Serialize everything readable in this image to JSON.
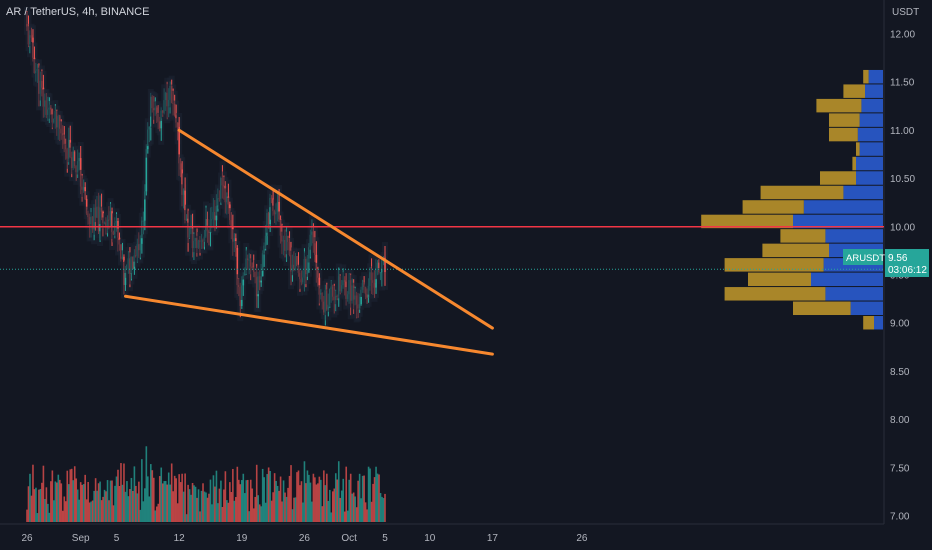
{
  "header": {
    "symbol_title": "AR / TetherUS, 4h, BINANCE"
  },
  "price_axis": {
    "currency": "USDT",
    "ticks": [
      "12.00",
      "11.50",
      "11.00",
      "10.50",
      "10.00",
      "9.50",
      "9.00",
      "8.50",
      "8.00",
      "7.50",
      "7.00"
    ]
  },
  "time_axis": {
    "ticks": [
      "26",
      "Sep",
      "5",
      "12",
      "19",
      "26",
      "Oct",
      "5",
      "10",
      "17",
      "26"
    ]
  },
  "current_price": {
    "symbol": "ARUSDT",
    "price": "9.56",
    "countdown": "03:06:12"
  },
  "colors": {
    "up": "#26a69a",
    "down": "#ef5350",
    "trendline": "#f7882f",
    "level": "#f23645",
    "vp_up": "#2b5fd9",
    "vp_down": "#c49a2a",
    "background": "#131722",
    "label_bg": "#26a69a"
  },
  "chart_data": {
    "type": "candlestick",
    "title": "AR / TetherUS, 4h, BINANCE",
    "ylim": [
      6.65,
      12.35
    ],
    "horizontal_level": 10.0,
    "price_series": [
      {
        "date": "Aug 26",
        "price": 12.1
      },
      {
        "date": "Aug 28",
        "price": 11.3
      },
      {
        "date": "Aug 30",
        "price": 10.95
      },
      {
        "date": "Sep 1",
        "price": 10.6
      },
      {
        "date": "Sep 2",
        "price": 10.05
      },
      {
        "date": "Sep 4",
        "price": 10.1
      },
      {
        "date": "Sep 5",
        "price": 10.05
      },
      {
        "date": "Sep 6",
        "price": 9.45
      },
      {
        "date": "Sep 8",
        "price": 9.95
      },
      {
        "date": "Sep 9",
        "price": 11.4
      },
      {
        "date": "Sep 10",
        "price": 11.0
      },
      {
        "date": "Sep 11",
        "price": 11.45
      },
      {
        "date": "Sep 12",
        "price": 10.9
      },
      {
        "date": "Sep 13",
        "price": 10.0
      },
      {
        "date": "Sep 14",
        "price": 9.8
      },
      {
        "date": "Sep 16",
        "price": 10.1
      },
      {
        "date": "Sep 17",
        "price": 10.5
      },
      {
        "date": "Sep 18",
        "price": 10.05
      },
      {
        "date": "Sep 19",
        "price": 9.25
      },
      {
        "date": "Sep 20",
        "price": 9.7
      },
      {
        "date": "Sep 21",
        "price": 9.35
      },
      {
        "date": "Sep 22",
        "price": 10.15
      },
      {
        "date": "Sep 23",
        "price": 10.25
      },
      {
        "date": "Sep 24",
        "price": 9.8
      },
      {
        "date": "Sep 25",
        "price": 9.6
      },
      {
        "date": "Sep 26",
        "price": 9.45
      },
      {
        "date": "Sep 27",
        "price": 10.0
      },
      {
        "date": "Sep 28",
        "price": 9.2
      },
      {
        "date": "Sep 29",
        "price": 9.3
      },
      {
        "date": "Sep 30",
        "price": 9.35
      },
      {
        "date": "Oct 1",
        "price": 9.4
      },
      {
        "date": "Oct 2",
        "price": 9.2
      },
      {
        "date": "Oct 3",
        "price": 9.35
      },
      {
        "date": "Oct 4",
        "price": 9.5
      },
      {
        "date": "Oct 5",
        "price": 9.56
      }
    ],
    "trendlines": [
      {
        "name": "upper",
        "from": {
          "date": "Sep 12",
          "price": 11.0
        },
        "to": {
          "date": "Oct 17",
          "price": 8.95
        }
      },
      {
        "name": "lower",
        "from": {
          "date": "Sep 6",
          "price": 9.28
        },
        "to": {
          "date": "Oct 17",
          "price": 8.68
        }
      }
    ],
    "volume_profile": [
      {
        "price": 11.55,
        "up": 0.08,
        "down": 0.03
      },
      {
        "price": 11.4,
        "up": 0.1,
        "down": 0.12
      },
      {
        "price": 11.25,
        "up": 0.12,
        "down": 0.25
      },
      {
        "price": 11.1,
        "up": 0.13,
        "down": 0.17
      },
      {
        "price": 10.95,
        "up": 0.14,
        "down": 0.16
      },
      {
        "price": 10.8,
        "up": 0.13,
        "down": 0.02
      },
      {
        "price": 10.65,
        "up": 0.15,
        "down": 0.02
      },
      {
        "price": 10.5,
        "up": 0.15,
        "down": 0.2
      },
      {
        "price": 10.35,
        "up": 0.22,
        "down": 0.46
      },
      {
        "price": 10.2,
        "up": 0.44,
        "down": 0.34
      },
      {
        "price": 10.05,
        "up": 0.5,
        "down": 0.51
      },
      {
        "price": 9.9,
        "up": 0.32,
        "down": 0.25
      },
      {
        "price": 9.75,
        "up": 0.3,
        "down": 0.37
      },
      {
        "price": 9.6,
        "up": 0.33,
        "down": 0.55
      },
      {
        "price": 9.45,
        "up": 0.4,
        "down": 0.35
      },
      {
        "price": 9.3,
        "up": 0.32,
        "down": 0.56
      },
      {
        "price": 9.15,
        "up": 0.18,
        "down": 0.32
      },
      {
        "price": 9.0,
        "up": 0.05,
        "down": 0.06
      }
    ]
  }
}
